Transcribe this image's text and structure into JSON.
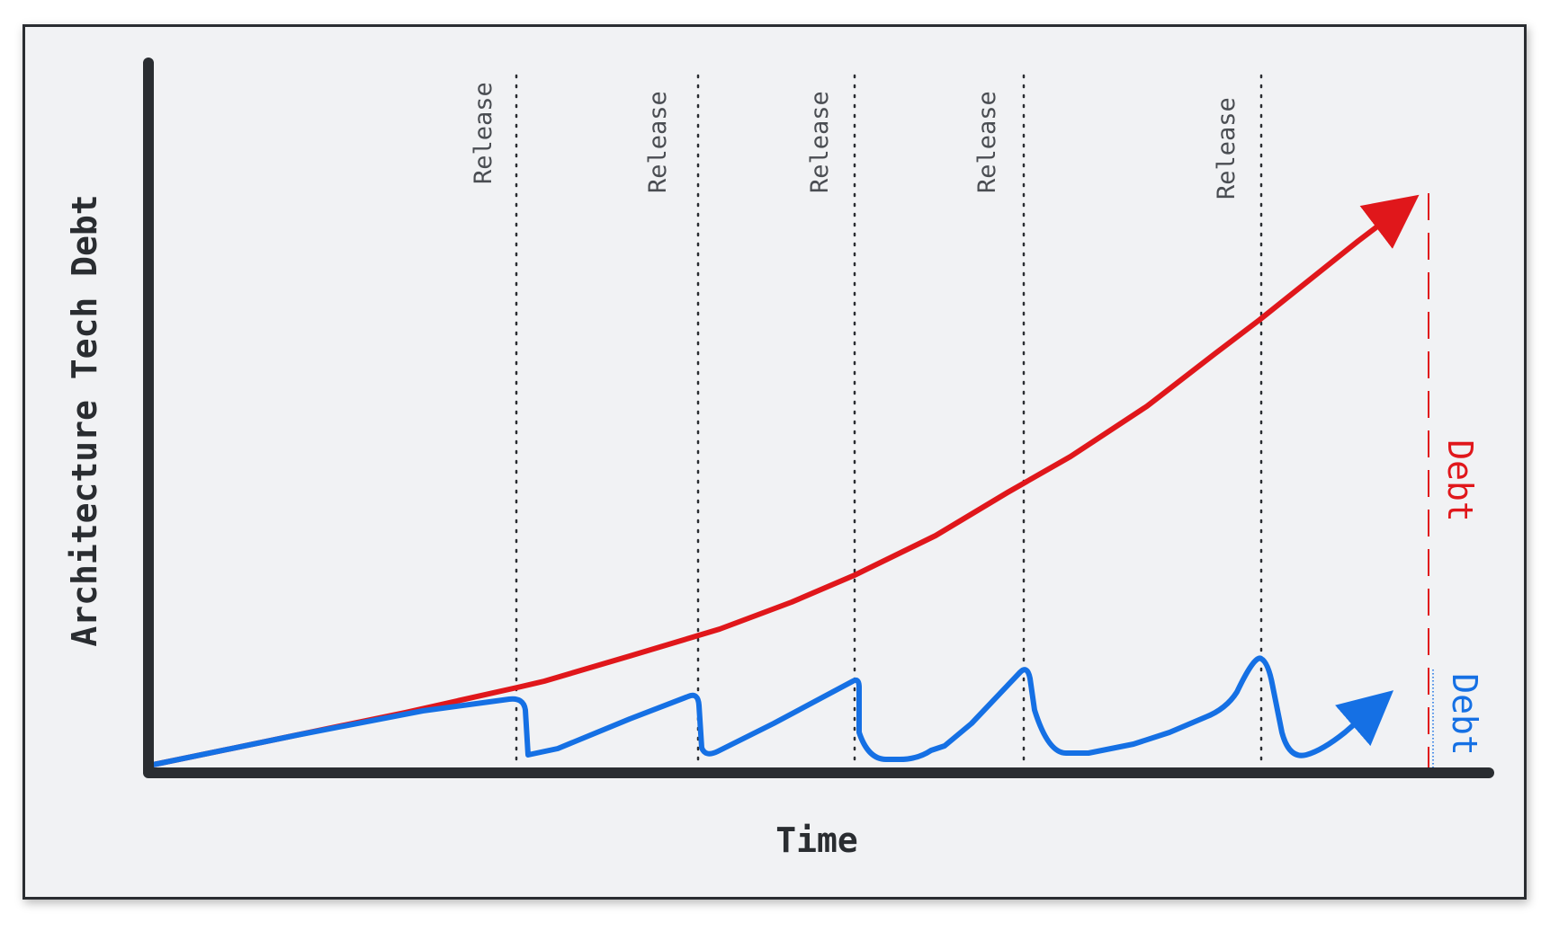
{
  "diagram": {
    "y_axis_label": "Architecture Tech Debt",
    "x_axis_label": "Time",
    "release_label": "Release",
    "releases": [
      "Release",
      "Release",
      "Release",
      "Release",
      "Release"
    ],
    "red_series_label": "Debt",
    "blue_series_label": "Debt",
    "colors": {
      "background": "#f1f2f4",
      "axis": "#2a2d31",
      "red": "#e0171b",
      "blue": "#1570e4",
      "release_text": "#4a4d52"
    }
  }
}
